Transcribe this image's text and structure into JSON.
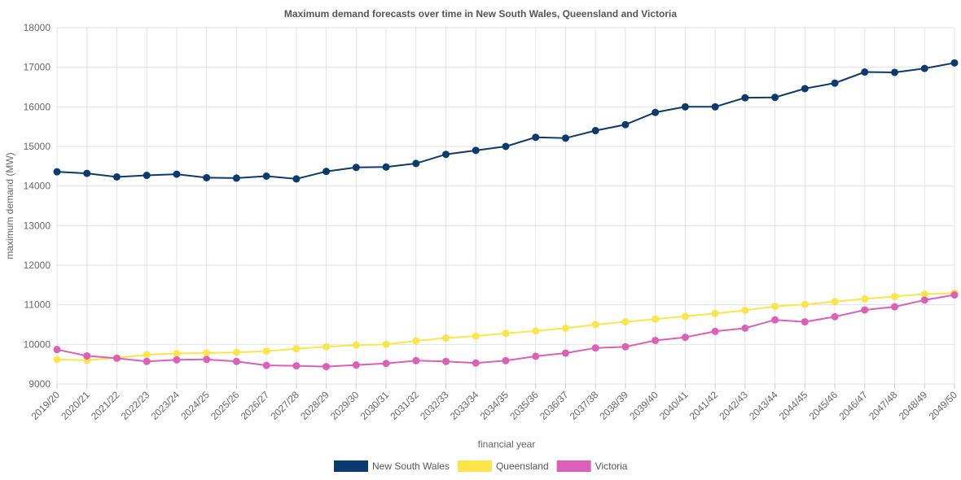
{
  "chart_data": {
    "type": "line",
    "title": "Maximum demand forecasts over time in New South Wales, Queensland and Victoria",
    "xlabel": "financial year",
    "ylabel": "maximum demand (MW)",
    "ylim": [
      9000,
      18000
    ],
    "yticks": [
      9000,
      10000,
      11000,
      12000,
      13000,
      14000,
      15000,
      16000,
      17000,
      18000
    ],
    "grid": true,
    "legend_position": "bottom",
    "categories": [
      "2019/20",
      "2020/21",
      "2021/22",
      "2022/23",
      "2023/24",
      "2024/25",
      "2025/26",
      "2026/27",
      "2027/28",
      "2028/29",
      "2029/30",
      "2030/31",
      "2031/32",
      "2032/33",
      "2033/34",
      "2034/35",
      "2035/36",
      "2036/37",
      "2037/38",
      "2038/39",
      "2039/40",
      "2040/41",
      "2041/42",
      "2042/43",
      "2043/44",
      "2044/45",
      "2045/46",
      "2046/47",
      "2047/48",
      "2048/49",
      "2049/50"
    ],
    "series": [
      {
        "name": "New South Wales",
        "color": "#0b3a6e",
        "values": [
          14360,
          14320,
          14230,
          14270,
          14300,
          14210,
          14200,
          14250,
          14180,
          14370,
          14470,
          14480,
          14570,
          14800,
          14900,
          15000,
          15230,
          15210,
          15400,
          15550,
          15860,
          16000,
          16000,
          16230,
          16240,
          16460,
          16600,
          16880,
          16870,
          16970,
          17110
        ]
      },
      {
        "name": "Queensland",
        "color": "#fbe54a",
        "values": [
          9620,
          9600,
          9660,
          9740,
          9770,
          9780,
          9800,
          9830,
          9890,
          9940,
          9980,
          10000,
          10090,
          10160,
          10210,
          10280,
          10340,
          10410,
          10500,
          10570,
          10640,
          10710,
          10780,
          10860,
          10960,
          11010,
          11080,
          11150,
          11210,
          11270,
          11300
        ]
      },
      {
        "name": "Victoria",
        "color": "#dc5fb8",
        "values": [
          9870,
          9710,
          9650,
          9570,
          9610,
          9620,
          9570,
          9470,
          9460,
          9440,
          9480,
          9520,
          9590,
          9570,
          9530,
          9590,
          9700,
          9780,
          9910,
          9940,
          10100,
          10180,
          10330,
          10410,
          10620,
          10570,
          10700,
          10870,
          10950,
          11120,
          11250
        ]
      }
    ]
  }
}
